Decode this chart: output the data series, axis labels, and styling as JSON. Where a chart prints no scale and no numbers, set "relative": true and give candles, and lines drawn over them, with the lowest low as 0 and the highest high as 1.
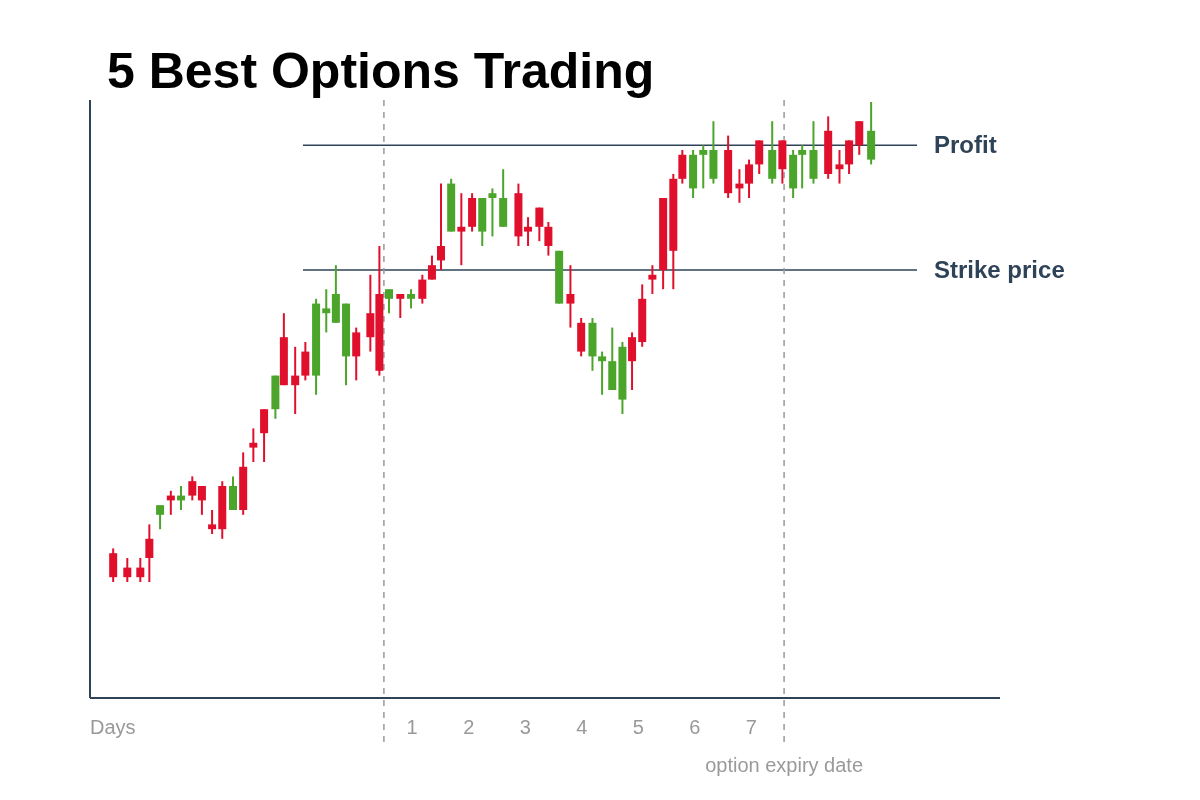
{
  "chart_data": {
    "type": "candlestick",
    "title": "5 Best Options Trading",
    "xlabel": "Days",
    "relative": true,
    "xlim": [
      -4.7,
      11.4
    ],
    "xticks": [
      1,
      2,
      3,
      4,
      5,
      6,
      7
    ],
    "grid": false,
    "series": [
      {
        "color": "#e0102d",
        "x": [
          -4.29,
          -4.04,
          -3.81,
          -3.65,
          -3.27,
          -2.89,
          -2.72,
          -2.54,
          -2.36,
          -1.99,
          -1.81,
          -1.62,
          -1.27,
          -1.07,
          -0.89,
          0.01,
          0.26,
          0.42,
          0.79,
          1.18,
          1.35,
          1.51,
          1.87,
          2.06,
          2.88,
          3.05,
          3.25,
          3.41,
          3.8,
          3.99,
          4.89,
          5.07,
          5.25,
          5.44,
          5.62,
          5.78,
          6.59,
          6.79,
          6.96,
          7.14,
          7.55,
          8.36,
          8.56,
          8.73,
          8.91
        ],
        "ohlc": [
          [
            0.01,
            0.07,
            0,
            0.06
          ],
          [
            0.01,
            0.05,
            0.0,
            0.03
          ],
          [
            0.01,
            0.05,
            0.0,
            0.03
          ],
          [
            0.05,
            0.12,
            0.0,
            0.09
          ],
          [
            0.17,
            0.19,
            0.14,
            0.18
          ],
          [
            0.18,
            0.22,
            0.17,
            0.21
          ],
          [
            0.17,
            0.2,
            0.14,
            0.2
          ],
          [
            0.11,
            0.15,
            0.1,
            0.12
          ],
          [
            0.11,
            0.21,
            0.09,
            0.2
          ],
          [
            0.15,
            0.27,
            0.14,
            0.24
          ],
          [
            0.28,
            0.32,
            0.25,
            0.29
          ],
          [
            0.31,
            0.36,
            0.25,
            0.36
          ],
          [
            0.41,
            0.56,
            0.41,
            0.51
          ],
          [
            0.41,
            0.49,
            0.35,
            0.43
          ],
          [
            0.43,
            0.5,
            0.42,
            0.48
          ],
          [
            0.47,
            0.53,
            0.42,
            0.52
          ],
          [
            0.51,
            0.64,
            0.48,
            0.56
          ],
          [
            0.44,
            0.7,
            0.43,
            0.6
          ],
          [
            0.59,
            0.6,
            0.55,
            0.6
          ],
          [
            0.59,
            0.64,
            0.58,
            0.63
          ],
          [
            0.63,
            0.68,
            0.63,
            0.66
          ],
          [
            0.67,
            0.83,
            0.65,
            0.7
          ],
          [
            0.73,
            0.81,
            0.66,
            0.74
          ],
          [
            0.74,
            0.81,
            0.73,
            0.8
          ],
          [
            0.72,
            0.83,
            0.7,
            0.81
          ],
          [
            0.73,
            0.76,
            0.7,
            0.74
          ],
          [
            0.74,
            0.78,
            0.71,
            0.78
          ],
          [
            0.7,
            0.75,
            0.68,
            0.74
          ],
          [
            0.58,
            0.66,
            0.53,
            0.6
          ],
          [
            0.48,
            0.55,
            0.47,
            0.54
          ],
          [
            0.46,
            0.52,
            0.4,
            0.51
          ],
          [
            0.5,
            0.62,
            0.49,
            0.59
          ],
          [
            0.63,
            0.66,
            0.6,
            0.64
          ],
          [
            0.65,
            0.8,
            0.61,
            0.8
          ],
          [
            0.69,
            0.85,
            0.61,
            0.84
          ],
          [
            0.84,
            0.9,
            0.83,
            0.89
          ],
          [
            0.81,
            0.93,
            0.8,
            0.9
          ],
          [
            0.82,
            0.86,
            0.79,
            0.83
          ],
          [
            0.83,
            0.88,
            0.8,
            0.87
          ],
          [
            0.87,
            0.92,
            0.85,
            0.92
          ],
          [
            0.86,
            0.92,
            0.83,
            0.92
          ],
          [
            0.85,
            0.97,
            0.84,
            0.94
          ],
          [
            0.86,
            0.9,
            0.83,
            0.87
          ],
          [
            0.87,
            0.92,
            0.85,
            0.92
          ],
          [
            0.91,
            0.96,
            0.89,
            0.96
          ]
        ]
      },
      {
        "color": "#4aa52a",
        "x": [
          -3.46,
          -3.09,
          -2.17,
          -1.42,
          -0.7,
          -0.52,
          -0.35,
          -0.17,
          0.59,
          0.98,
          1.69,
          2.24,
          2.42,
          2.61,
          3.6,
          4.19,
          4.36,
          4.54,
          4.72,
          5.97,
          6.15,
          6.33,
          7.37,
          7.74,
          7.9,
          8.1,
          9.12
        ],
        "ohlc": [
          [
            0.16,
            0.16,
            0.11,
            0.14
          ],
          [
            0.18,
            0.2,
            0.15,
            0.17
          ],
          [
            0.2,
            0.22,
            0.15,
            0.15
          ],
          [
            0.43,
            0.43,
            0.34,
            0.36
          ],
          [
            0.58,
            0.59,
            0.39,
            0.43
          ],
          [
            0.57,
            0.61,
            0.52,
            0.56
          ],
          [
            0.6,
            0.66,
            0.54,
            0.54
          ],
          [
            0.58,
            0.58,
            0.41,
            0.47
          ],
          [
            0.61,
            0.61,
            0.56,
            0.59
          ],
          [
            0.6,
            0.61,
            0.57,
            0.59
          ],
          [
            0.83,
            0.84,
            0.73,
            0.73
          ],
          [
            0.8,
            0.8,
            0.7,
            0.73
          ],
          [
            0.81,
            0.82,
            0.72,
            0.8
          ],
          [
            0.8,
            0.86,
            0.74,
            0.74
          ],
          [
            0.69,
            0.69,
            0.58,
            0.58
          ],
          [
            0.54,
            0.55,
            0.44,
            0.47
          ],
          [
            0.47,
            0.48,
            0.39,
            0.46
          ],
          [
            0.46,
            0.53,
            0.4,
            0.4
          ],
          [
            0.49,
            0.5,
            0.35,
            0.38
          ],
          [
            0.89,
            0.9,
            0.8,
            0.82
          ],
          [
            0.9,
            0.91,
            0.82,
            0.89
          ],
          [
            0.9,
            0.96,
            0.83,
            0.84
          ],
          [
            0.9,
            0.96,
            0.83,
            0.84
          ],
          [
            0.89,
            0.9,
            0.8,
            0.82
          ],
          [
            0.9,
            0.91,
            0.82,
            0.89
          ],
          [
            0.9,
            0.96,
            0.83,
            0.84
          ],
          [
            0.94,
            1.0,
            0.87,
            0.88
          ]
        ]
      }
    ],
    "ref_lines": [
      {
        "axis": "y",
        "value": 0.91,
        "label": "Profit",
        "color": "#2e4357"
      },
      {
        "axis": "y",
        "value": 0.65,
        "label": "Strike price",
        "color": "#2e4357"
      },
      {
        "axis": "x",
        "value": 0.5,
        "label": null,
        "line_style": "dashed",
        "color": "#9a9a9a"
      },
      {
        "axis": "x",
        "value": 7.58,
        "label": "option expiry date",
        "line_style": "dashed",
        "color": "#9a9a9a"
      }
    ]
  }
}
